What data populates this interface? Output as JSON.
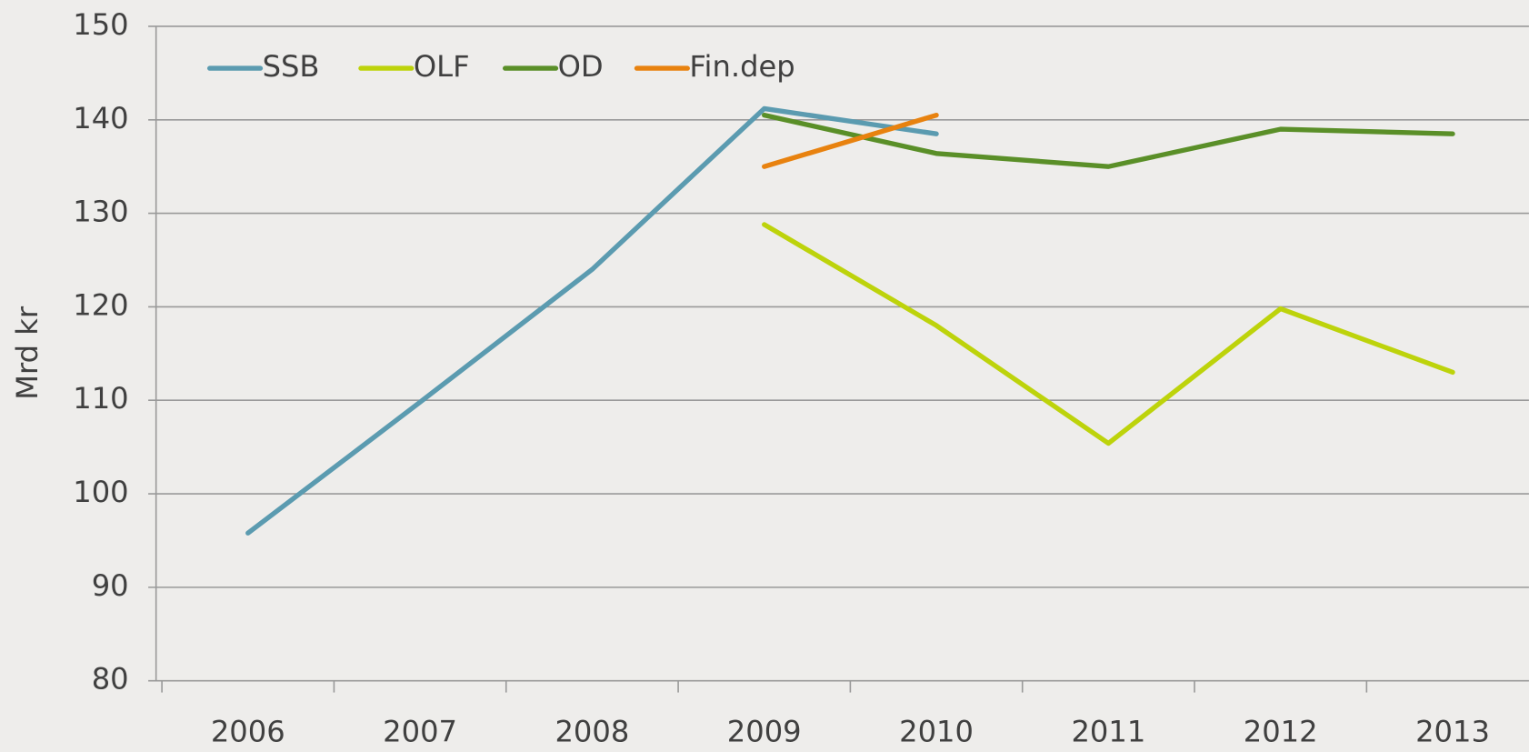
{
  "chart_data": {
    "type": "line",
    "y_label": "Mrd kr",
    "categories": [
      "2006",
      "2007",
      "2008",
      "2009",
      "2010",
      "2011",
      "2012",
      "2013"
    ],
    "series": [
      {
        "name": "SSB",
        "color": "#5b9bb0",
        "values": [
          95.8,
          109.8,
          124,
          141.2,
          138.5,
          null,
          null,
          null
        ]
      },
      {
        "name": "OLF",
        "color": "#bdd30b",
        "values": [
          null,
          null,
          null,
          128.8,
          118,
          105.4,
          119.8,
          113
        ]
      },
      {
        "name": "OD",
        "color": "#5a8f28",
        "values": [
          null,
          null,
          null,
          140.5,
          136.4,
          135,
          139,
          138.5
        ]
      },
      {
        "name": "Fin.dep",
        "color": "#e8820f",
        "values": [
          null,
          null,
          null,
          135,
          140.5,
          null,
          null,
          null
        ]
      }
    ],
    "ylim": [
      80,
      150
    ],
    "yticks": [
      80,
      90,
      100,
      110,
      120,
      130,
      140,
      150
    ],
    "grid": true,
    "legend": "top-left"
  }
}
